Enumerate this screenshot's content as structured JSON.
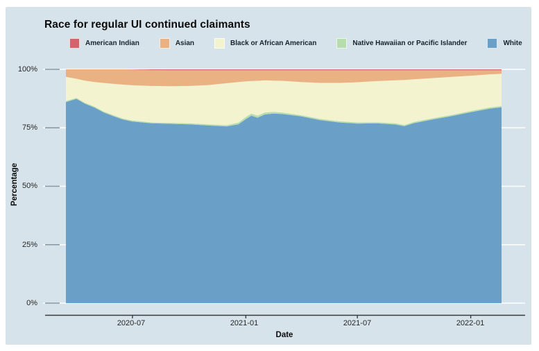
{
  "title": "Race for regular UI continued claimants",
  "card_background": "#d7e3ea",
  "legend": {
    "items": [
      {
        "label": "American Indian"
      },
      {
        "label": "Asian"
      },
      {
        "label": "Black or African American"
      },
      {
        "label": "Native Hawaiian or Pacific Islander"
      },
      {
        "label": "White"
      }
    ]
  },
  "chart_data": {
    "type": "area",
    "stacked": true,
    "normalized": "percent",
    "title": "Race for regular UI continued claimants",
    "xlabel": "Date",
    "ylabel": "Percentage",
    "ylim": [
      0,
      100
    ],
    "grid": "white horizontal lines every 25%",
    "legend_position": "top",
    "colors": {
      "American Indian": "#d5636b",
      "Asian": "#eab282",
      "Black or African American": "#f3f3d0",
      "Native Hawaiian or Pacific Islander": "#b7dcae",
      "White": "#6aa0c7"
    },
    "stack_order_bottom_to_top": [
      "White",
      "Native Hawaiian or Pacific Islander",
      "Black or African American",
      "Asian",
      "American Indian"
    ],
    "x_domain": [
      "2020-03-15",
      "2022-02-20"
    ],
    "y_ticks": [
      {
        "label": "0%",
        "value": 0
      },
      {
        "label": "25%",
        "value": 25
      },
      {
        "label": "50%",
        "value": 50
      },
      {
        "label": "75%",
        "value": 75
      },
      {
        "label": "100%",
        "value": 100
      }
    ],
    "x_ticks": [
      {
        "label": "2020-07",
        "date": "2020-07-01"
      },
      {
        "label": "2021-01",
        "date": "2021-01-01"
      },
      {
        "label": "2021-07",
        "date": "2021-07-01"
      },
      {
        "label": "2022-01",
        "date": "2022-01-01"
      }
    ],
    "x": [
      "2020-03-15",
      "2020-04-01",
      "2020-04-15",
      "2020-05-01",
      "2020-05-15",
      "2020-06-01",
      "2020-06-15",
      "2020-07-01",
      "2020-08-01",
      "2020-09-01",
      "2020-10-01",
      "2020-11-01",
      "2020-12-01",
      "2020-12-20",
      "2021-01-01",
      "2021-01-10",
      "2021-01-20",
      "2021-02-01",
      "2021-02-15",
      "2021-03-01",
      "2021-04-01",
      "2021-05-01",
      "2021-06-01",
      "2021-07-01",
      "2021-08-01",
      "2021-09-01",
      "2021-09-15",
      "2021-10-01",
      "2021-11-01",
      "2021-12-01",
      "2022-01-01",
      "2022-02-01",
      "2022-02-20"
    ],
    "series": [
      {
        "name": "American Indian",
        "values": [
          0,
          0,
          0,
          0,
          0,
          0,
          0,
          0.1,
          0.3,
          0.4,
          0.4,
          0.4,
          0.4,
          0.4,
          0.4,
          0.4,
          0.4,
          0.4,
          0.4,
          0.4,
          0.4,
          0.4,
          0.4,
          0.4,
          0.4,
          0.4,
          0.4,
          0.4,
          0.4,
          0.4,
          0.4,
          0.4,
          0.4
        ]
      },
      {
        "name": "Asian",
        "values": [
          3.2,
          4.0,
          4.8,
          5.4,
          5.8,
          6.2,
          6.5,
          6.7,
          6.8,
          6.8,
          6.7,
          6.3,
          5.5,
          5.0,
          4.7,
          4.6,
          4.5,
          4.3,
          4.4,
          4.5,
          5.0,
          5.4,
          5.4,
          5.1,
          4.6,
          4.3,
          4.1,
          3.8,
          3.3,
          2.8,
          2.3,
          1.7,
          1.5
        ]
      },
      {
        "name": "Black or African American",
        "values": [
          10.4,
          8.2,
          9.5,
          10.6,
          12.2,
          13.5,
          14.5,
          15.1,
          15.6,
          15.7,
          16.0,
          16.8,
          18.0,
          17.4,
          15.3,
          13.9,
          14.9,
          13.8,
          13.4,
          13.6,
          14.2,
          15.4,
          16.4,
          17.2,
          17.6,
          18.4,
          19.3,
          18.3,
          17.2,
          16.3,
          15.1,
          14.2,
          13.8
        ]
      },
      {
        "name": "Native Hawaiian or Pacific Islander",
        "values": [
          0.4,
          0.4,
          0.4,
          0.4,
          0.4,
          0.4,
          0.4,
          0.4,
          0.4,
          0.4,
          0.4,
          0.5,
          0.5,
          0.7,
          0.9,
          0.9,
          0.9,
          0.8,
          0.7,
          0.6,
          0.5,
          0.5,
          0.5,
          0.5,
          0.5,
          0.5,
          0.5,
          0.5,
          0.5,
          0.5,
          0.5,
          0.5,
          0.5
        ]
      },
      {
        "name": "White",
        "values": [
          86.0,
          87.4,
          85.3,
          83.6,
          81.6,
          79.9,
          78.6,
          77.7,
          76.9,
          76.7,
          76.5,
          76.0,
          75.6,
          76.5,
          78.7,
          80.2,
          79.3,
          80.7,
          81.1,
          80.9,
          79.9,
          78.3,
          77.3,
          76.8,
          76.9,
          76.4,
          75.7,
          77.0,
          78.6,
          80.0,
          81.7,
          83.2,
          83.8
        ]
      }
    ]
  }
}
